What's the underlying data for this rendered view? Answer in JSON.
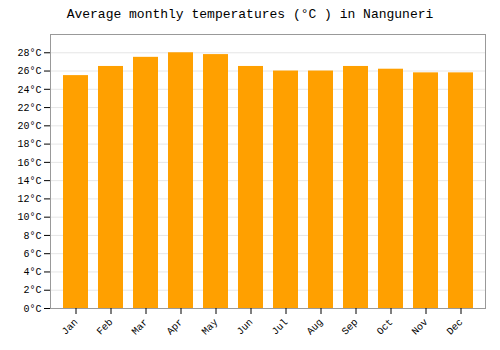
{
  "chart_data": {
    "type": "bar",
    "title": "Average monthly temperatures (°C ) in Nanguneri",
    "categories": [
      "Jan",
      "Feb",
      "Mar",
      "Apr",
      "May",
      "Jun",
      "Jul",
      "Aug",
      "Sep",
      "Oct",
      "Nov",
      "Dec"
    ],
    "values": [
      25.5,
      26.5,
      27.5,
      28.0,
      27.8,
      26.5,
      26.0,
      26.0,
      26.5,
      26.2,
      25.8,
      25.8
    ],
    "color": "#FFA000",
    "ylim": [
      0,
      30
    ],
    "yticks": [
      {
        "value": 0,
        "label": "0°C"
      },
      {
        "value": 2,
        "label": "2°C"
      },
      {
        "value": 4,
        "label": "4°C"
      },
      {
        "value": 6,
        "label": "6°C"
      },
      {
        "value": 8,
        "label": "8°C"
      },
      {
        "value": 10,
        "label": "10°C"
      },
      {
        "value": 12,
        "label": "12°C"
      },
      {
        "value": 14,
        "label": "14°C"
      },
      {
        "value": 16,
        "label": "16°C"
      },
      {
        "value": 18,
        "label": "18°C"
      },
      {
        "value": 20,
        "label": "20°C"
      },
      {
        "value": 22,
        "label": "22°C"
      },
      {
        "value": 24,
        "label": "24°C"
      },
      {
        "value": 26,
        "label": "26°C"
      },
      {
        "value": 28,
        "label": "28°C"
      }
    ],
    "grid": true
  }
}
